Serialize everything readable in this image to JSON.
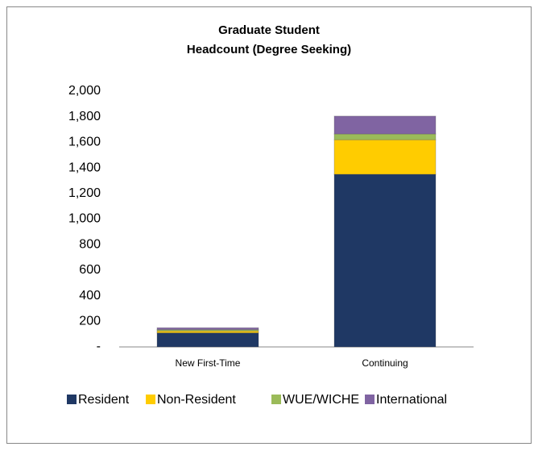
{
  "chart_data": {
    "type": "stacked_bar",
    "title": [
      "Graduate Student",
      "Headcount (Degree Seeking)"
    ],
    "categories": [
      "New First-Time",
      "Continuing"
    ],
    "series": [
      {
        "name": "Resident",
        "color": "#1f3864",
        "values": [
          110,
          1350
        ]
      },
      {
        "name": "Non-Resident",
        "color": "#ffcc00",
        "values": [
          15,
          270
        ]
      },
      {
        "name": "WUE/WICHE",
        "color": "#9bbb59",
        "values": [
          10,
          45
        ]
      },
      {
        "name": "International",
        "color": "#8064a2",
        "values": [
          15,
          140
        ]
      }
    ],
    "ylim": [
      0,
      2000
    ],
    "yticks": [
      {
        "value": 0,
        "label": "-"
      },
      200,
      400,
      600,
      800,
      {
        "value": 1000,
        "label": "1,000"
      },
      {
        "value": 1200,
        "label": "1,200"
      },
      {
        "value": 1400,
        "label": "1,400"
      },
      {
        "value": 1600,
        "label": "1,600"
      },
      {
        "value": 1800,
        "label": "1,800"
      },
      {
        "value": 2000,
        "label": "2,000"
      }
    ],
    "legend": "bottom"
  }
}
